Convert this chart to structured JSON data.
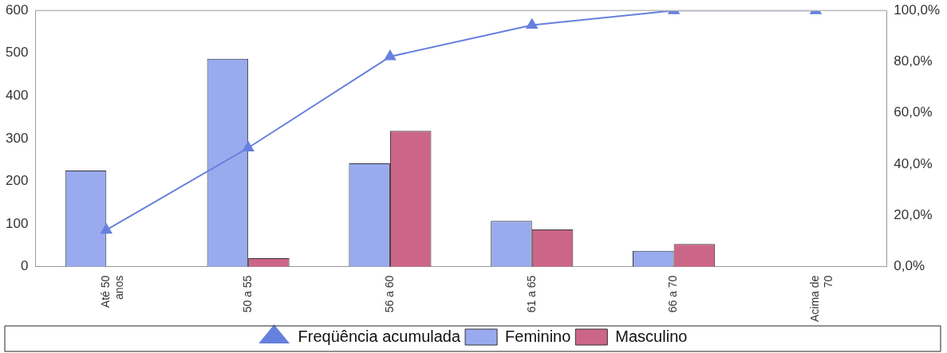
{
  "chart_data": {
    "type": "bar",
    "categories": [
      "Até 50 anos",
      "50 a 55",
      "56 a 60",
      "61 a 65",
      "66 a 70",
      "Acima de 70"
    ],
    "series": [
      {
        "name": "Feminino",
        "color": "#99aaee",
        "values": [
          225,
          487,
          242,
          107,
          37,
          0
        ]
      },
      {
        "name": "Masculino",
        "color": "#cc6688",
        "values": [
          0,
          20,
          318,
          87,
          53,
          0
        ]
      },
      {
        "name": "Freqüência acumulada",
        "type": "line",
        "axis": "y2",
        "color": "#6680dd",
        "marker": "triangle",
        "values": [
          14.3,
          46.4,
          82.0,
          94.3,
          100,
          100
        ]
      }
    ],
    "ylim": [
      0,
      600
    ],
    "yticks": [
      0,
      100,
      200,
      300,
      400,
      500,
      600
    ],
    "y2lim": [
      0,
      100
    ],
    "y2ticks": [
      {
        "value": 0,
        "label": "0,0%"
      },
      {
        "value": 20,
        "label": "20,0%"
      },
      {
        "value": 40,
        "label": "40,0%"
      },
      {
        "value": 60,
        "label": "60,0%"
      },
      {
        "value": 80,
        "label": "80,0%"
      },
      {
        "value": 100,
        "label": "100,0%"
      }
    ],
    "grid": false,
    "legend": "bottom"
  }
}
